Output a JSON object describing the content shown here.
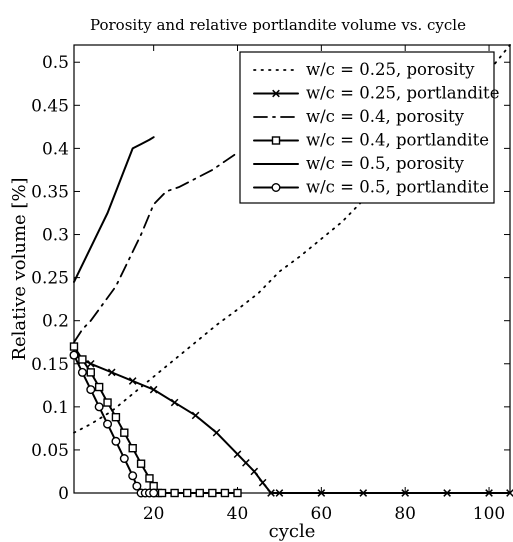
{
  "chart_data": {
    "type": "line",
    "title": "Porosity and relative portlandite volume vs. cycle",
    "xlabel": "cycle",
    "ylabel": "Relative volume [%]",
    "xlim": [
      1,
      105
    ],
    "ylim": [
      0,
      0.52
    ],
    "xticks": [
      20,
      40,
      60,
      80,
      100
    ],
    "yticks": [
      0,
      0.05,
      0.1,
      0.15,
      0.2,
      0.25,
      0.3,
      0.35,
      0.4,
      0.45,
      0.5
    ],
    "grid": false,
    "legend_position": "top-right",
    "series": [
      {
        "name": "w/c = 0.25, porosity",
        "style": "dotted",
        "marker": "none",
        "color": "#000000",
        "x": [
          1,
          5,
          10,
          15,
          20,
          25,
          30,
          35,
          40,
          45,
          50,
          55,
          60,
          65,
          70,
          75,
          80,
          85,
          90,
          95,
          100,
          105
        ],
        "y": [
          0.07,
          0.08,
          0.095,
          0.115,
          0.135,
          0.155,
          0.175,
          0.195,
          0.213,
          0.232,
          0.257,
          0.275,
          0.295,
          0.315,
          0.34,
          0.36,
          0.385,
          0.41,
          0.435,
          0.46,
          0.49,
          0.52
        ]
      },
      {
        "name": "w/c = 0.25, portlandite",
        "style": "solid",
        "marker": "x",
        "color": "#000000",
        "x": [
          1,
          5,
          10,
          15,
          20,
          25,
          30,
          35,
          40,
          42,
          44,
          46,
          48,
          50,
          60,
          70,
          80,
          90,
          100,
          105
        ],
        "y": [
          0.16,
          0.15,
          0.14,
          0.13,
          0.12,
          0.105,
          0.09,
          0.07,
          0.045,
          0.035,
          0.025,
          0.012,
          0.0,
          0.0,
          0.0,
          0.0,
          0.0,
          0.0,
          0.0,
          0.0
        ]
      },
      {
        "name": "w/c = 0.4, porosity",
        "style": "dashdot",
        "marker": "none",
        "color": "#000000",
        "x": [
          1,
          3,
          5,
          8,
          11,
          14,
          17,
          20,
          23,
          26,
          30,
          34,
          37,
          40
        ],
        "y": [
          0.175,
          0.19,
          0.2,
          0.22,
          0.24,
          0.27,
          0.3,
          0.335,
          0.35,
          0.355,
          0.365,
          0.375,
          0.385,
          0.395
        ]
      },
      {
        "name": "w/c = 0.4, portlandite",
        "style": "solid",
        "marker": "square",
        "color": "#000000",
        "x": [
          1,
          3,
          5,
          7,
          9,
          11,
          13,
          15,
          17,
          19,
          20,
          21,
          22,
          25,
          28,
          31,
          34,
          37,
          40
        ],
        "y": [
          0.17,
          0.155,
          0.14,
          0.123,
          0.105,
          0.088,
          0.07,
          0.052,
          0.034,
          0.017,
          0.008,
          0.0,
          0.0,
          0.0,
          0.0,
          0.0,
          0.0,
          0.0,
          0.0
        ]
      },
      {
        "name": "w/c = 0.5, porosity",
        "style": "solid",
        "marker": "none",
        "color": "#000000",
        "x": [
          1,
          3,
          5,
          7,
          9,
          11,
          13,
          15,
          17,
          19,
          20
        ],
        "y": [
          0.245,
          0.265,
          0.285,
          0.305,
          0.325,
          0.35,
          0.375,
          0.4,
          0.405,
          0.41,
          0.413
        ]
      },
      {
        "name": "w/c = 0.5, portlandite",
        "style": "solid",
        "marker": "circle",
        "color": "#000000",
        "x": [
          1,
          3,
          5,
          7,
          9,
          11,
          13,
          15,
          16,
          17,
          18,
          19,
          20
        ],
        "y": [
          0.16,
          0.14,
          0.12,
          0.1,
          0.08,
          0.06,
          0.04,
          0.02,
          0.008,
          0.0,
          0.0,
          0.0,
          0.0
        ]
      }
    ]
  }
}
